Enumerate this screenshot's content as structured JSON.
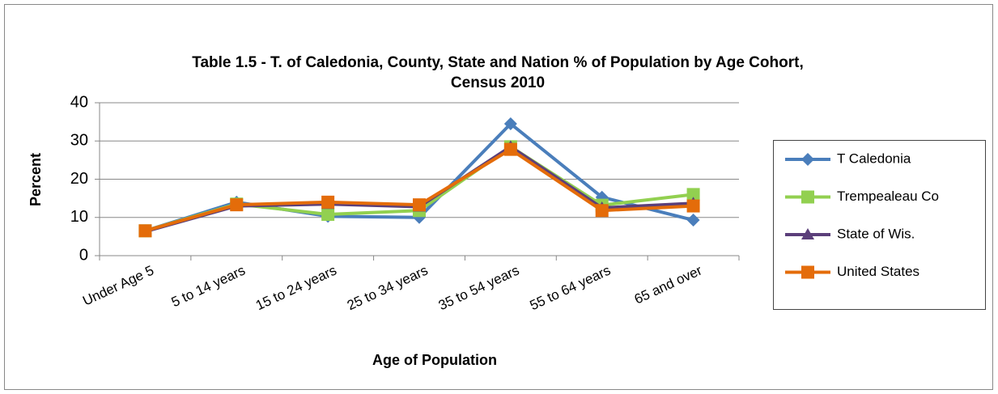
{
  "chart_data": {
    "type": "line",
    "title": [
      "Table 1.5 - T. of Caledonia, County, State and Nation % of Population by Age Cohort,",
      "Census 2010"
    ],
    "x_label": "Age of Population",
    "y_label": "Percent",
    "categories": [
      "Under Age  5",
      "5 to 14 years",
      "15 to 24 years",
      "25 to 34 years",
      "35 to 54 years",
      "55 to 64 years",
      "65 and over"
    ],
    "series": [
      {
        "name": "T Caledonia",
        "color": "#4a7ebb",
        "marker": "diamond",
        "values": [
          6.5,
          14,
          10.3,
          10,
          34.5,
          15.3,
          9.3
        ]
      },
      {
        "name": "Trempealeau Co",
        "color": "#92d050",
        "marker": "square",
        "values": [
          6.5,
          13.5,
          10.8,
          11.8,
          28.5,
          13.2,
          16
        ]
      },
      {
        "name": "State of Wis.",
        "color": "#5b3f7a",
        "marker": "triangle",
        "values": [
          6.3,
          13,
          13.5,
          12.8,
          28.5,
          12.5,
          13.7
        ]
      },
      {
        "name": "United States",
        "color": "#e46c0a",
        "marker": "square",
        "values": [
          6.5,
          13.3,
          14,
          13.3,
          27.8,
          11.8,
          13
        ]
      }
    ],
    "ylim": [
      0,
      40
    ],
    "yticks": [
      0,
      10,
      20,
      30,
      40
    ],
    "grid": true,
    "legend": "right"
  }
}
